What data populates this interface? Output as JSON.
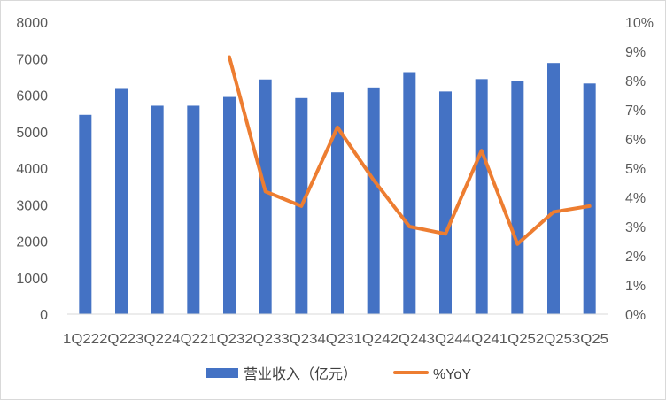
{
  "chart_data": {
    "type": "bar+line",
    "x_tick_labels": [
      "1Q22",
      "2Q22",
      "3Q22",
      "4Q22",
      "1Q23",
      "2Q23",
      "3Q23",
      "4Q23",
      "1Q24",
      "2Q24",
      "3Q24",
      "4Q24",
      "1Q25",
      "2Q25",
      "3Q25"
    ],
    "x_tick_text": "1Q222Q223Q224Q221Q232Q233Q234Q231Q242Q243Q244Q241Q252Q253Q25",
    "categories": [
      "1Q22",
      "2Q22",
      "3Q22",
      "4Q22",
      "1Q23",
      "2Q23",
      "3Q23",
      "4Q23",
      "1Q24",
      "2Q24",
      "3Q24",
      "4Q24",
      "1Q25",
      "2Q25",
      "3Q25"
    ],
    "series": [
      {
        "name": "营业收入（亿元）",
        "type": "bar",
        "axis": "left",
        "color": "#4472C4",
        "values": [
          5460,
          6170,
          5710,
          5710,
          5950,
          6430,
          5920,
          6080,
          6210,
          6630,
          6100,
          6440,
          6400,
          6880,
          6320
        ]
      },
      {
        "name": "%YoY",
        "type": "line",
        "axis": "right",
        "color": "#ED7D31",
        "values": [
          null,
          null,
          null,
          null,
          8.8,
          4.2,
          3.7,
          6.4,
          4.6,
          3.0,
          2.75,
          5.6,
          2.4,
          3.5,
          3.7
        ]
      }
    ],
    "left_axis": {
      "min": 0,
      "max": 8000,
      "step": 1000,
      "ticks": [
        "0",
        "1000",
        "2000",
        "3000",
        "4000",
        "5000",
        "6000",
        "7000",
        "8000"
      ]
    },
    "right_axis": {
      "min": 0,
      "max": 10,
      "step": 1,
      "ticks": [
        "0%",
        "1%",
        "2%",
        "3%",
        "4%",
        "5%",
        "6%",
        "7%",
        "8%",
        "9%",
        "10%"
      ]
    },
    "grid": false,
    "legend_position": "bottom"
  }
}
